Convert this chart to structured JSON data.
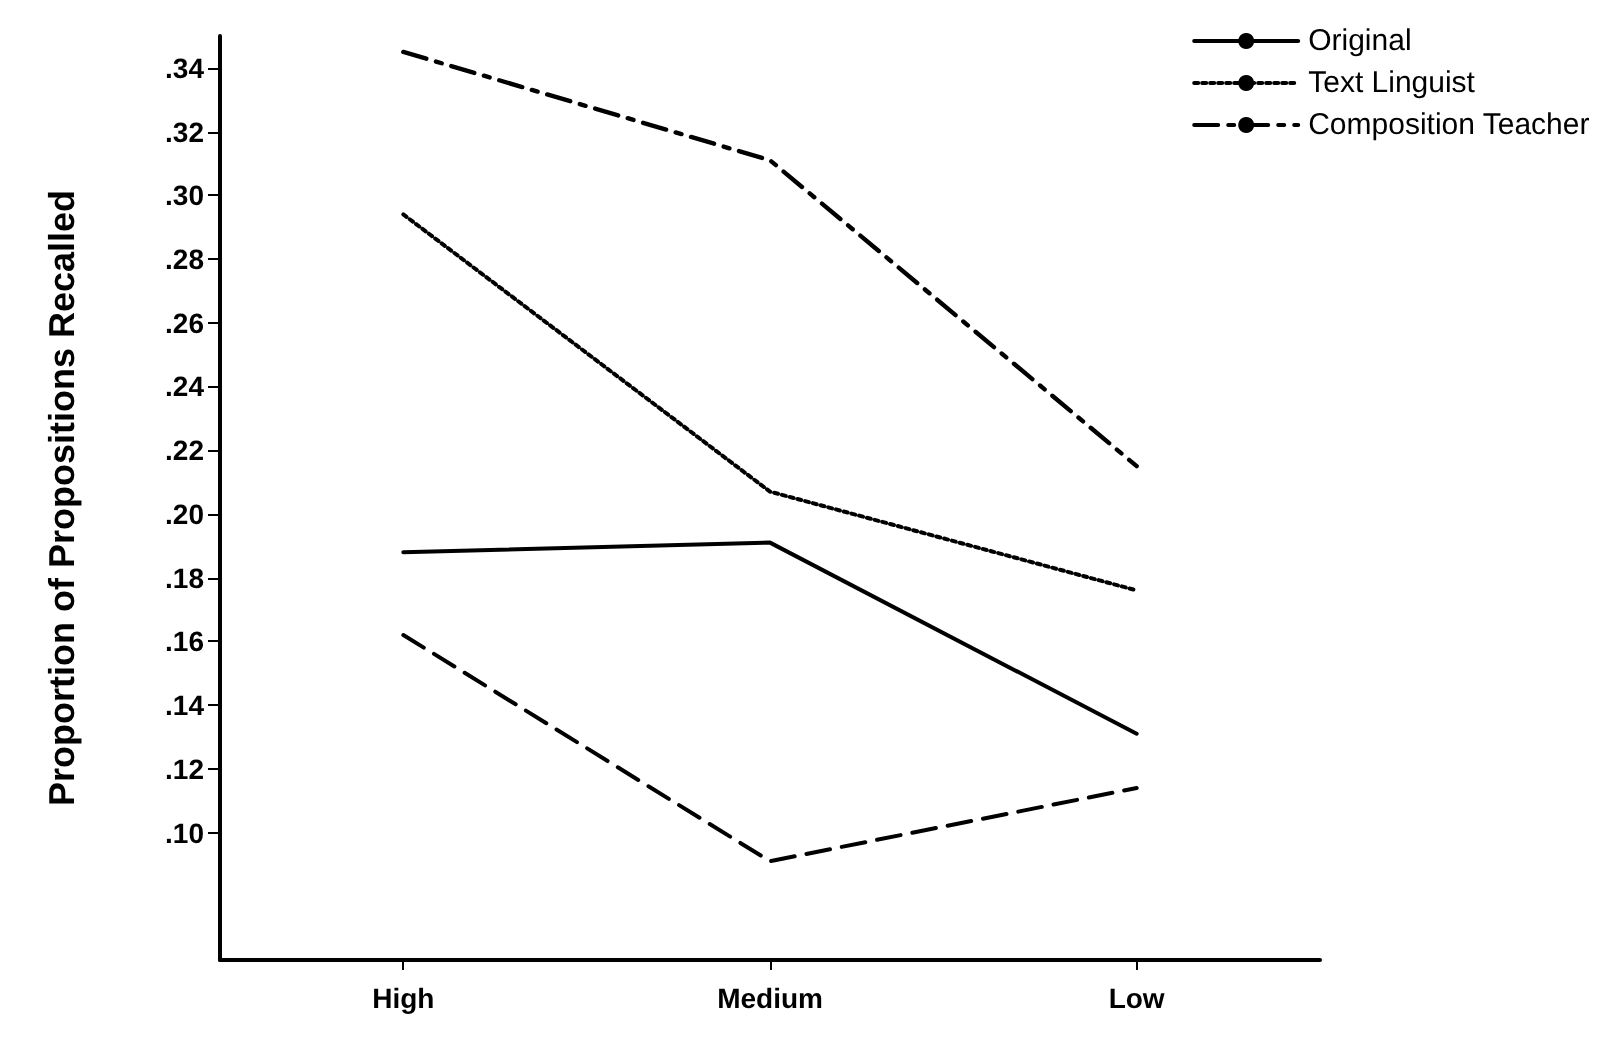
{
  "chart_data": {
    "type": "line",
    "ylabel": "Proportion of Propositions Recalled",
    "categories": [
      "High",
      "Medium",
      "Low"
    ],
    "series": [
      {
        "name": "Original",
        "color": "#000000",
        "line_style": "solid",
        "values": [
          0.188,
          0.191,
          0.131
        ]
      },
      {
        "name": "Text Linguist",
        "color": "#000000",
        "line_style": "dotted",
        "values": [
          0.294,
          0.207,
          0.176
        ]
      },
      {
        "name": "Composition Teacher",
        "color": "#000000",
        "line_style": "dashdot",
        "values": [
          0.345,
          0.311,
          0.215
        ]
      },
      {
        "color": "#000000",
        "line_style": "dashed",
        "values": [
          0.162,
          0.091,
          0.114
        ]
      }
    ],
    "ylim": [
      0.06,
      0.35
    ],
    "yticks": [
      {
        "value": 0.1,
        "label": ".10"
      },
      {
        "value": 0.12,
        "label": ".12"
      },
      {
        "value": 0.14,
        "label": ".14"
      },
      {
        "value": 0.16,
        "label": ".16"
      },
      {
        "value": 0.18,
        "label": ".18"
      },
      {
        "value": 0.2,
        "label": ".20"
      },
      {
        "value": 0.22,
        "label": ".22"
      },
      {
        "value": 0.24,
        "label": ".24"
      },
      {
        "value": 0.26,
        "label": ".26"
      },
      {
        "value": 0.28,
        "label": ".28"
      },
      {
        "value": 0.3,
        "label": ".30"
      },
      {
        "value": 0.32,
        "label": ".32"
      },
      {
        "value": 0.34,
        "label": ".34"
      }
    ],
    "grid": false,
    "legend": "top right",
    "marker": "none"
  }
}
